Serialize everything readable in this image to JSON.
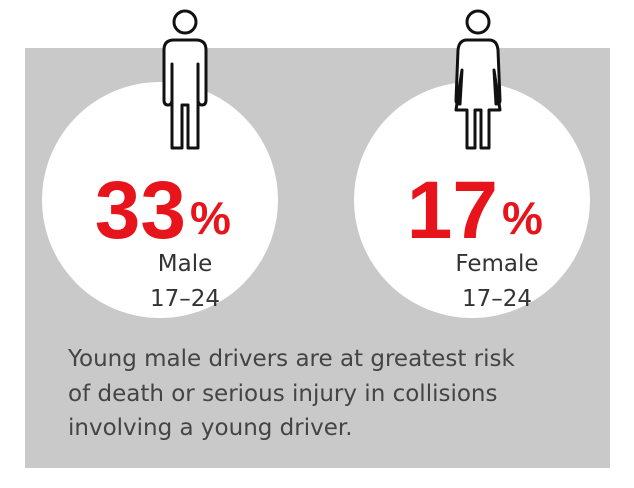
{
  "items": [
    {
      "value": "33",
      "unit": "%",
      "label": "Male",
      "age": "17–24"
    },
    {
      "value": "17",
      "unit": "%",
      "label": "Female",
      "age": "17–24"
    }
  ],
  "caption": [
    "Young male drivers are at greatest risk",
    "of death or serious injury in collisions",
    "involving a young driver."
  ]
}
